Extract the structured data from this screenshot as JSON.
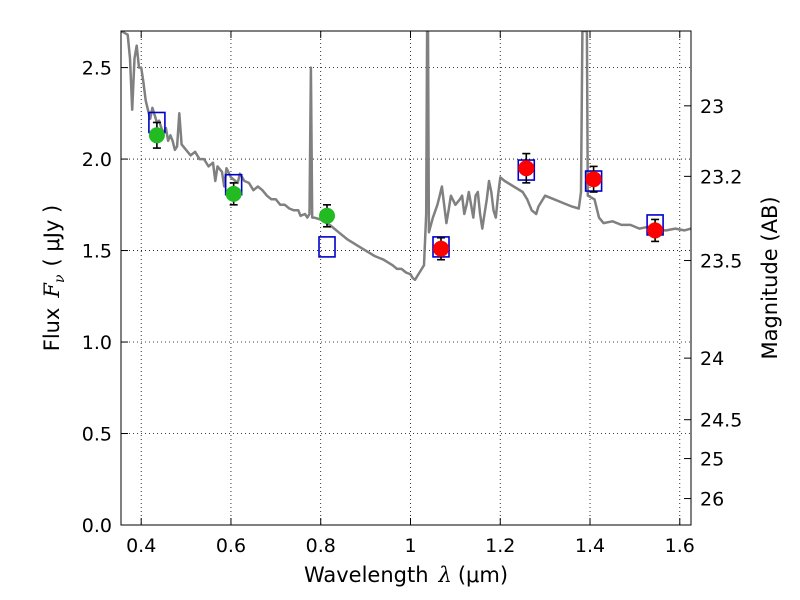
{
  "chart_data": {
    "type": "scatter",
    "xlabel_text": "Wavelength",
    "xlabel_symbol": "λ",
    "xlabel_unit": "(μm)",
    "ylabel_text": "Flux",
    "ylabel_symbol": "F",
    "ylabel_subscript": "ν",
    "ylabel_unit": "( μJy )",
    "y2label": "Magnitude (AB)",
    "xlim": [
      0.355,
      1.625
    ],
    "ylim": [
      0.0,
      2.7
    ],
    "grid": true,
    "grid_style": "dotted",
    "x_ticks": [
      0.4,
      0.6,
      0.8,
      1.0,
      1.2,
      1.4,
      1.6
    ],
    "x_tick_labels": [
      "0.4",
      "0.6",
      "0.8",
      "1",
      "1.2",
      "1.4",
      "1.6"
    ],
    "y_ticks": [
      0.0,
      0.5,
      1.0,
      1.5,
      2.0,
      2.5
    ],
    "y_tick_labels": [
      "0.0",
      "0.5",
      "1.0",
      "1.5",
      "2.0",
      "2.5"
    ],
    "y2_ticks": [
      23,
      23.2,
      23.5,
      24,
      24.5,
      25,
      26
    ],
    "y2_tick_labels": [
      "23",
      "23.2",
      "23.5",
      "24",
      "24.5",
      "25",
      "26"
    ],
    "colors": {
      "spectrum": "#808080",
      "observed_optical": "#22bb22",
      "observed_nir": "#ff0000",
      "model": "#0000cc",
      "errorbar": "#000000"
    },
    "spectrum": [
      [
        0.355,
        2.7
      ],
      [
        0.37,
        2.68
      ],
      [
        0.375,
        2.55
      ],
      [
        0.38,
        2.27
      ],
      [
        0.385,
        2.55
      ],
      [
        0.39,
        2.62
      ],
      [
        0.395,
        2.5
      ],
      [
        0.4,
        2.5
      ],
      [
        0.405,
        2.42
      ],
      [
        0.41,
        2.32
      ],
      [
        0.415,
        2.27
      ],
      [
        0.42,
        2.22
      ],
      [
        0.425,
        2.28
      ],
      [
        0.43,
        2.24
      ],
      [
        0.435,
        2.2
      ],
      [
        0.44,
        2.21
      ],
      [
        0.445,
        2.17
      ],
      [
        0.45,
        2.14
      ],
      [
        0.455,
        2.17
      ],
      [
        0.46,
        2.1
      ],
      [
        0.465,
        2.13
      ],
      [
        0.47,
        2.1
      ],
      [
        0.475,
        2.05
      ],
      [
        0.48,
        2.07
      ],
      [
        0.485,
        2.25
      ],
      [
        0.49,
        2.08
      ],
      [
        0.5,
        2.05
      ],
      [
        0.51,
        2.02
      ],
      [
        0.52,
        2.04
      ],
      [
        0.53,
        2.0
      ],
      [
        0.54,
        2.0
      ],
      [
        0.55,
        1.96
      ],
      [
        0.56,
        1.98
      ],
      [
        0.565,
        1.88
      ],
      [
        0.57,
        1.96
      ],
      [
        0.58,
        1.93
      ],
      [
        0.585,
        1.85
      ],
      [
        0.59,
        1.95
      ],
      [
        0.6,
        1.9
      ],
      [
        0.61,
        1.88
      ],
      [
        0.615,
        1.87
      ],
      [
        0.62,
        1.92
      ],
      [
        0.63,
        1.88
      ],
      [
        0.64,
        1.87
      ],
      [
        0.65,
        1.83
      ],
      [
        0.66,
        1.85
      ],
      [
        0.67,
        1.83
      ],
      [
        0.68,
        1.8
      ],
      [
        0.69,
        1.78
      ],
      [
        0.7,
        1.78
      ],
      [
        0.71,
        1.75
      ],
      [
        0.72,
        1.75
      ],
      [
        0.73,
        1.73
      ],
      [
        0.74,
        1.72
      ],
      [
        0.75,
        1.72
      ],
      [
        0.755,
        1.69
      ],
      [
        0.765,
        1.7
      ],
      [
        0.77,
        1.68
      ],
      [
        0.775,
        1.7
      ],
      [
        0.778,
        2.5
      ],
      [
        0.781,
        1.68
      ],
      [
        0.785,
        1.68
      ],
      [
        0.8,
        1.67
      ],
      [
        0.82,
        1.64
      ],
      [
        0.84,
        1.6
      ],
      [
        0.86,
        1.56
      ],
      [
        0.88,
        1.53
      ],
      [
        0.9,
        1.5
      ],
      [
        0.92,
        1.47
      ],
      [
        0.94,
        1.45
      ],
      [
        0.96,
        1.42
      ],
      [
        0.97,
        1.4
      ],
      [
        0.98,
        1.4
      ],
      [
        0.99,
        1.38
      ],
      [
        1.0,
        1.37
      ],
      [
        1.005,
        1.35
      ],
      [
        1.01,
        1.34
      ],
      [
        1.02,
        1.38
      ],
      [
        1.03,
        1.42
      ],
      [
        1.035,
        1.7
      ],
      [
        1.037,
        2.7
      ],
      [
        1.039,
        2.7
      ],
      [
        1.041,
        1.6
      ],
      [
        1.05,
        1.68
      ],
      [
        1.06,
        1.75
      ],
      [
        1.065,
        1.8
      ],
      [
        1.07,
        1.85
      ],
      [
        1.08,
        1.65
      ],
      [
        1.085,
        1.72
      ],
      [
        1.09,
        1.8
      ],
      [
        1.1,
        1.75
      ],
      [
        1.11,
        1.78
      ],
      [
        1.115,
        1.8
      ],
      [
        1.12,
        1.7
      ],
      [
        1.125,
        1.75
      ],
      [
        1.13,
        1.82
      ],
      [
        1.135,
        1.75
      ],
      [
        1.14,
        1.68
      ],
      [
        1.145,
        1.8
      ],
      [
        1.15,
        1.82
      ],
      [
        1.155,
        1.7
      ],
      [
        1.16,
        1.62
      ],
      [
        1.165,
        1.7
      ],
      [
        1.17,
        1.78
      ],
      [
        1.175,
        1.88
      ],
      [
        1.18,
        1.82
      ],
      [
        1.185,
        1.72
      ],
      [
        1.19,
        1.68
      ],
      [
        1.195,
        1.8
      ],
      [
        1.2,
        1.9
      ],
      [
        1.21,
        1.88
      ],
      [
        1.23,
        1.85
      ],
      [
        1.25,
        1.82
      ],
      [
        1.26,
        1.78
      ],
      [
        1.27,
        1.72
      ],
      [
        1.28,
        1.7
      ],
      [
        1.285,
        1.74
      ],
      [
        1.29,
        1.76
      ],
      [
        1.3,
        1.8
      ],
      [
        1.32,
        1.78
      ],
      [
        1.34,
        1.76
      ],
      [
        1.36,
        1.74
      ],
      [
        1.375,
        1.73
      ],
      [
        1.38,
        1.82
      ],
      [
        1.383,
        2.7
      ],
      [
        1.393,
        2.7
      ],
      [
        1.395,
        1.8
      ],
      [
        1.41,
        1.78
      ],
      [
        1.42,
        1.68
      ],
      [
        1.43,
        1.65
      ],
      [
        1.45,
        1.66
      ],
      [
        1.47,
        1.64
      ],
      [
        1.49,
        1.64
      ],
      [
        1.51,
        1.62
      ],
      [
        1.53,
        1.63
      ],
      [
        1.55,
        1.61
      ],
      [
        1.57,
        1.61
      ],
      [
        1.59,
        1.62
      ],
      [
        1.61,
        1.61
      ],
      [
        1.625,
        1.62
      ]
    ],
    "observed_optical": [
      {
        "x": 0.435,
        "y": 2.13,
        "err": 0.07
      },
      {
        "x": 0.606,
        "y": 1.81,
        "err": 0.06
      },
      {
        "x": 0.814,
        "y": 1.69,
        "err": 0.06
      }
    ],
    "observed_nir": [
      {
        "x": 1.068,
        "y": 1.51,
        "err": 0.06
      },
      {
        "x": 1.258,
        "y": 1.95,
        "err": 0.08
      },
      {
        "x": 1.408,
        "y": 1.89,
        "err": 0.07
      },
      {
        "x": 1.545,
        "y": 1.61,
        "err": 0.06
      }
    ],
    "model": [
      {
        "x": 0.435,
        "y": 2.2
      },
      {
        "x": 0.606,
        "y": 1.86
      },
      {
        "x": 0.814,
        "y": 1.52
      },
      {
        "x": 1.068,
        "y": 1.52
      },
      {
        "x": 1.258,
        "y": 1.94
      },
      {
        "x": 1.408,
        "y": 1.88
      },
      {
        "x": 1.545,
        "y": 1.64
      }
    ]
  }
}
